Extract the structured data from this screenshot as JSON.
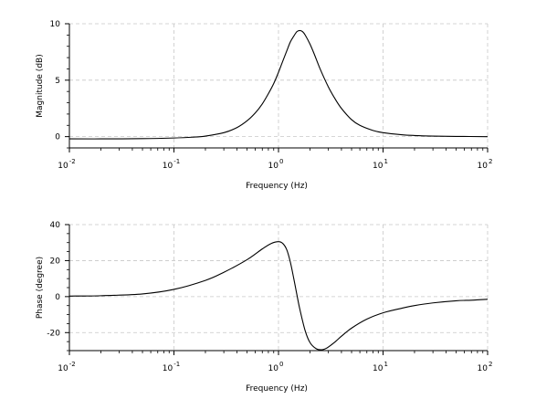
{
  "chart_data": [
    {
      "type": "line",
      "xlabel": "Frequency (Hz)",
      "ylabel": "Magnitude (dB)",
      "xscale": "log",
      "xlim": [
        0.01,
        100
      ],
      "ylim": [
        -1,
        10
      ],
      "xticks": [
        {
          "base": "10",
          "exp": "-2"
        },
        {
          "base": "10",
          "exp": "-1"
        },
        {
          "base": "10",
          "exp": "0"
        },
        {
          "base": "10",
          "exp": "1"
        },
        {
          "base": "10",
          "exp": "2"
        }
      ],
      "yticks": [
        "0",
        "5",
        "10"
      ],
      "grid": true,
      "series": [
        {
          "x": [
            0.01,
            0.02,
            0.05,
            0.1,
            0.15,
            0.2,
            0.3,
            0.4,
            0.5,
            0.6,
            0.7,
            0.8,
            0.9,
            1.0,
            1.1,
            1.2,
            1.3,
            1.4,
            1.5,
            1.6,
            1.7,
            1.8,
            2.0,
            2.2,
            2.5,
            3.0,
            3.5,
            4.0,
            5.0,
            6.0,
            8.0,
            10,
            15,
            20,
            30,
            50,
            100
          ],
          "y": [
            -0.2,
            -0.2,
            -0.18,
            -0.12,
            -0.05,
            0.05,
            0.35,
            0.8,
            1.4,
            2.1,
            2.9,
            3.8,
            4.7,
            5.7,
            6.7,
            7.6,
            8.4,
            8.9,
            9.3,
            9.4,
            9.3,
            9.0,
            8.2,
            7.3,
            6.0,
            4.4,
            3.3,
            2.5,
            1.5,
            1.0,
            0.55,
            0.35,
            0.17,
            0.1,
            0.05,
            0.02,
            0.0
          ]
        }
      ]
    },
    {
      "type": "line",
      "xlabel": "Frequency (Hz)",
      "ylabel": "Phase (degree)",
      "xscale": "log",
      "xlim": [
        0.01,
        100
      ],
      "ylim": [
        -30,
        40
      ],
      "xticks": [
        {
          "base": "10",
          "exp": "-2"
        },
        {
          "base": "10",
          "exp": "-1"
        },
        {
          "base": "10",
          "exp": "0"
        },
        {
          "base": "10",
          "exp": "1"
        },
        {
          "base": "10",
          "exp": "2"
        }
      ],
      "yticks": [
        "-20",
        "0",
        "20",
        "40"
      ],
      "grid": true,
      "series": [
        {
          "x": [
            0.01,
            0.02,
            0.05,
            0.1,
            0.2,
            0.3,
            0.5,
            0.7,
            0.85,
            1.0,
            1.1,
            1.2,
            1.3,
            1.4,
            1.5,
            1.6,
            1.8,
            2.0,
            2.3,
            2.6,
            2.8,
            3.0,
            3.5,
            4.0,
            5.0,
            7.0,
            10,
            15,
            20,
            30,
            50,
            70,
            100
          ],
          "y": [
            0.3,
            0.5,
            1.5,
            4.0,
            9.0,
            13.5,
            20.5,
            26.5,
            29.5,
            30.5,
            29.5,
            26.0,
            19.0,
            10.0,
            1.0,
            -7.0,
            -19.0,
            -25.5,
            -29.0,
            -29.5,
            -29.0,
            -28.0,
            -25.0,
            -22.0,
            -17.5,
            -12.5,
            -9.0,
            -6.5,
            -5.0,
            -3.5,
            -2.3,
            -2.0,
            -1.5
          ]
        }
      ]
    }
  ]
}
